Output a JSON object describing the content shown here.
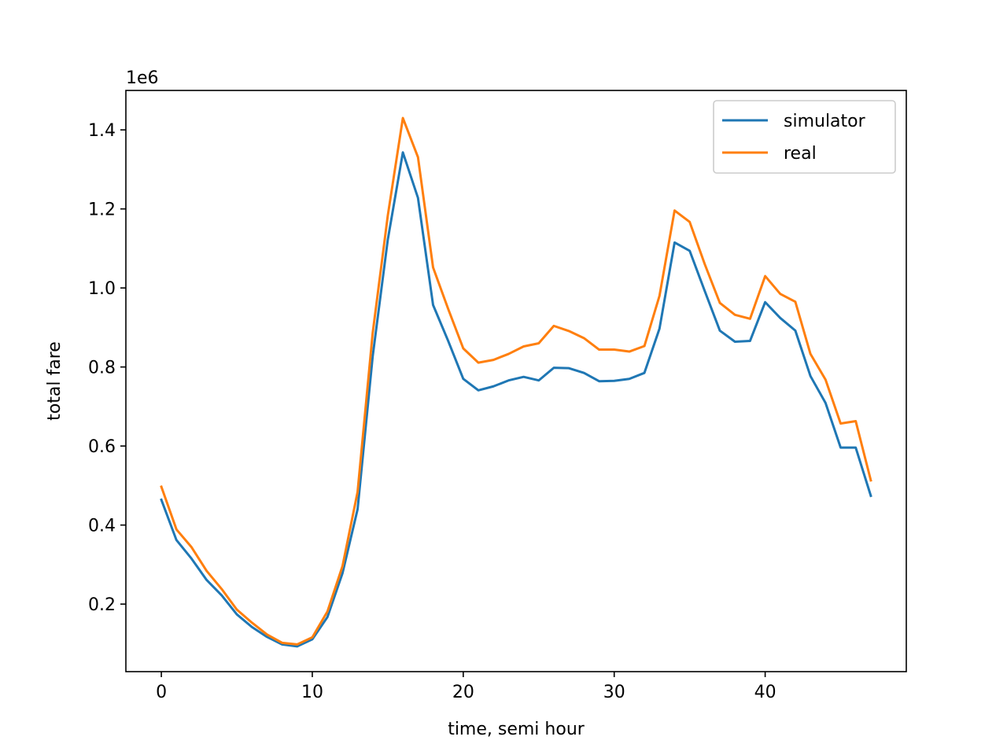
{
  "chart_data": {
    "type": "line",
    "xlabel": "time, semi hour",
    "ylabel": "total fare",
    "y_offset_label": "1e6",
    "xlim": [
      -2.35,
      49.35
    ],
    "ylim": [
      0.0291,
      1.4998
    ],
    "xticks": [
      0,
      10,
      20,
      30,
      40
    ],
    "yticks": [
      0.2,
      0.4,
      0.6,
      0.8,
      1.0,
      1.2,
      1.4
    ],
    "ytick_labels": [
      "0.2",
      "0.4",
      "0.6",
      "0.8",
      "1.0",
      "1.2",
      "1.4"
    ],
    "grid": false,
    "legend_position": "top-right",
    "x": [
      0,
      1,
      2,
      3,
      4,
      5,
      6,
      7,
      8,
      9,
      10,
      11,
      12,
      13,
      14,
      15,
      16,
      17,
      18,
      19,
      20,
      21,
      22,
      23,
      24,
      25,
      26,
      27,
      28,
      29,
      30,
      31,
      32,
      33,
      34,
      35,
      36,
      37,
      38,
      39,
      40,
      41,
      42,
      43,
      44,
      45,
      46,
      47
    ],
    "series": [
      {
        "name": "simulator",
        "color": "#1f77b4",
        "values": [
          0.464,
          0.362,
          0.315,
          0.261,
          0.222,
          0.174,
          0.142,
          0.117,
          0.098,
          0.093,
          0.111,
          0.167,
          0.278,
          0.44,
          0.827,
          1.122,
          1.343,
          1.228,
          0.957,
          0.866,
          0.77,
          0.741,
          0.751,
          0.766,
          0.775,
          0.766,
          0.798,
          0.797,
          0.785,
          0.764,
          0.765,
          0.77,
          0.785,
          0.897,
          1.115,
          1.094,
          0.992,
          0.892,
          0.864,
          0.866,
          0.964,
          0.924,
          0.892,
          0.777,
          0.709,
          0.596,
          0.596,
          0.474
        ]
      },
      {
        "name": "real",
        "color": "#ff7f0e",
        "values": [
          0.497,
          0.389,
          0.344,
          0.284,
          0.238,
          0.186,
          0.153,
          0.123,
          0.102,
          0.098,
          0.116,
          0.181,
          0.296,
          0.484,
          0.886,
          1.183,
          1.43,
          1.331,
          1.052,
          0.947,
          0.847,
          0.811,
          0.818,
          0.833,
          0.852,
          0.86,
          0.904,
          0.891,
          0.873,
          0.844,
          0.844,
          0.839,
          0.853,
          0.98,
          1.196,
          1.167,
          1.06,
          0.962,
          0.932,
          0.922,
          1.03,
          0.985,
          0.965,
          0.833,
          0.768,
          0.657,
          0.663,
          0.513
        ]
      }
    ]
  }
}
